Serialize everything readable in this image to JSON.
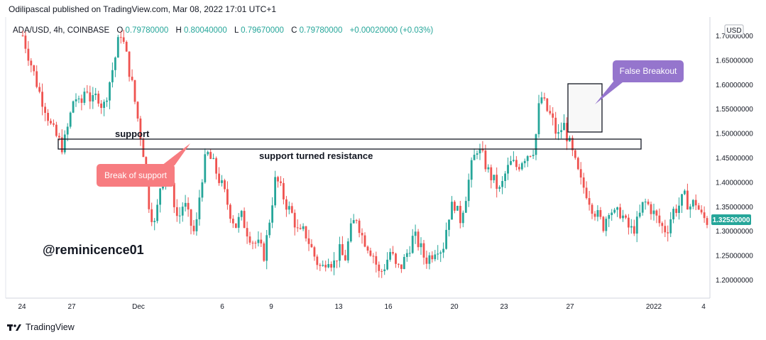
{
  "header": {
    "published": "Odilipascal published on TradingView.com, Mar 08, 2022 17:01 UTC+1"
  },
  "ohlc": {
    "symbol": "ADA/USD, 4h, COINBASE",
    "o_label": "O",
    "o": "0.79780000",
    "h_label": "H",
    "h": "0.80040000",
    "l_label": "L",
    "l": "0.79670000",
    "c_label": "C",
    "c": "0.79780000",
    "change": "+0.00020000 (+0.03%)"
  },
  "currency": "USD",
  "price_tag": "1.32520000",
  "watermark": "@reminicence01",
  "annotations": {
    "support": "support",
    "support_turned_resistance": "support turned resistance",
    "break_of_support": "Break of support",
    "false_breakout": "False Breakout"
  },
  "footer": {
    "logo_text": "TradingView"
  },
  "colors": {
    "up": "#26a69a",
    "down": "#ef5350",
    "break_callout": "#f77c80",
    "false_breakout_callout": "#9575cd",
    "price_tag": "#26a69a"
  },
  "chart_data": {
    "type": "candlestick",
    "title": "",
    "xlabel": "",
    "ylabel": "",
    "ylim": [
      1.16,
      1.74
    ],
    "y_ticks": [
      "1.70000000",
      "1.65000000",
      "1.60000000",
      "1.55000000",
      "1.50000000",
      "1.45000000",
      "1.40000000",
      "1.35000000",
      "1.30000000",
      "1.25000000",
      "1.20000000"
    ],
    "x_ticks": [
      "24",
      "27",
      "Dec",
      "6",
      "9",
      "13",
      "16",
      "20",
      "23",
      "27",
      "2022",
      "4"
    ],
    "support_zone": [
      1.465,
      1.485
    ],
    "false_breakout_box": [
      1.5,
      1.6
    ],
    "legend": "none",
    "grid": false,
    "closes_path": [
      1.7,
      1.66,
      1.62,
      1.58,
      1.55,
      1.51,
      1.49,
      1.47,
      1.52,
      1.58,
      1.55,
      1.6,
      1.56,
      1.58,
      1.55,
      1.6,
      1.65,
      1.71,
      1.66,
      1.6,
      1.53,
      1.46,
      1.35,
      1.31,
      1.4,
      1.42,
      1.38,
      1.32,
      1.36,
      1.32,
      1.29,
      1.4,
      1.46,
      1.44,
      1.41,
      1.38,
      1.34,
      1.31,
      1.33,
      1.3,
      1.28,
      1.27,
      1.25,
      1.33,
      1.41,
      1.38,
      1.35,
      1.33,
      1.29,
      1.3,
      1.27,
      1.24,
      1.22,
      1.25,
      1.23,
      1.26,
      1.24,
      1.3,
      1.33,
      1.29,
      1.27,
      1.25,
      1.21,
      1.23,
      1.26,
      1.22,
      1.23,
      1.26,
      1.29,
      1.27,
      1.24,
      1.25,
      1.27,
      1.26,
      1.33,
      1.36,
      1.32,
      1.37,
      1.43,
      1.47,
      1.45,
      1.42,
      1.4,
      1.38,
      1.42,
      1.44,
      1.43,
      1.45,
      1.46,
      1.47,
      1.58,
      1.55,
      1.53,
      1.49,
      1.52,
      1.48,
      1.44,
      1.4,
      1.38,
      1.35,
      1.33,
      1.31,
      1.35,
      1.33,
      1.34,
      1.31,
      1.3,
      1.32,
      1.36,
      1.35,
      1.33,
      1.31,
      1.3,
      1.34,
      1.35,
      1.37,
      1.35,
      1.36,
      1.33,
      1.32
    ]
  }
}
